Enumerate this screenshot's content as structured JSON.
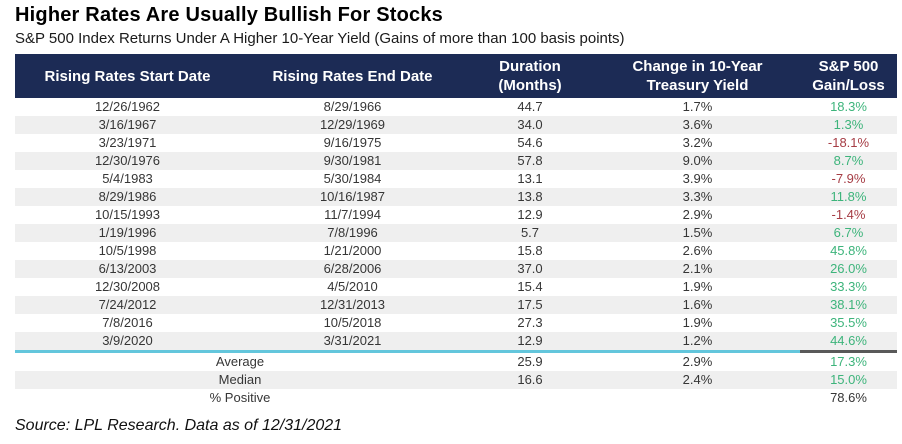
{
  "title": "Higher Rates Are Usually Bullish For Stocks",
  "subtitle": "S&P 500 Index Returns Under A Higher 10-Year Yield (Gains of more than 100 basis points)",
  "source": "Source: LPL Research. Data as of 12/31/2021",
  "colors": {
    "header_bg": "#1c2b55",
    "header_text": "#ffffff",
    "row_alt_bg": "#efefef",
    "body_text": "#363636",
    "gain_positive": "#3db47b",
    "gain_negative": "#a63d45",
    "divider_teal": "#63c6dc",
    "divider_dark": "#595959"
  },
  "table": {
    "columns": [
      {
        "label": "Rising Rates Start Date"
      },
      {
        "label": "Rising Rates End Date"
      },
      {
        "label": "Duration\n(Months)"
      },
      {
        "label": "Change in 10-Year\nTreasury Yield"
      },
      {
        "label": "S&P 500\nGain/Loss"
      }
    ],
    "rows": [
      {
        "start": "12/26/1962",
        "end": "8/29/1966",
        "duration": "44.7",
        "yield_change": "1.7%",
        "gain": "18.3%"
      },
      {
        "start": "3/16/1967",
        "end": "12/29/1969",
        "duration": "34.0",
        "yield_change": "3.6%",
        "gain": "1.3%"
      },
      {
        "start": "3/23/1971",
        "end": "9/16/1975",
        "duration": "54.6",
        "yield_change": "3.2%",
        "gain": "-18.1%"
      },
      {
        "start": "12/30/1976",
        "end": "9/30/1981",
        "duration": "57.8",
        "yield_change": "9.0%",
        "gain": "8.7%"
      },
      {
        "start": "5/4/1983",
        "end": "5/30/1984",
        "duration": "13.1",
        "yield_change": "3.9%",
        "gain": "-7.9%"
      },
      {
        "start": "8/29/1986",
        "end": "10/16/1987",
        "duration": "13.8",
        "yield_change": "3.3%",
        "gain": "11.8%"
      },
      {
        "start": "10/15/1993",
        "end": "11/7/1994",
        "duration": "12.9",
        "yield_change": "2.9%",
        "gain": "-1.4%"
      },
      {
        "start": "1/19/1996",
        "end": "7/8/1996",
        "duration": "5.7",
        "yield_change": "1.5%",
        "gain": "6.7%"
      },
      {
        "start": "10/5/1998",
        "end": "1/21/2000",
        "duration": "15.8",
        "yield_change": "2.6%",
        "gain": "45.8%"
      },
      {
        "start": "6/13/2003",
        "end": "6/28/2006",
        "duration": "37.0",
        "yield_change": "2.1%",
        "gain": "26.0%"
      },
      {
        "start": "12/30/2008",
        "end": "4/5/2010",
        "duration": "15.4",
        "yield_change": "1.9%",
        "gain": "33.3%"
      },
      {
        "start": "7/24/2012",
        "end": "12/31/2013",
        "duration": "17.5",
        "yield_change": "1.6%",
        "gain": "38.1%"
      },
      {
        "start": "7/8/2016",
        "end": "10/5/2018",
        "duration": "27.3",
        "yield_change": "1.9%",
        "gain": "35.5%"
      },
      {
        "start": "3/9/2020",
        "end": "3/31/2021",
        "duration": "12.9",
        "yield_change": "1.2%",
        "gain": "44.6%"
      }
    ],
    "summary": [
      {
        "label": "Average",
        "duration": "25.9",
        "yield_change": "2.9%",
        "gain": "17.3%",
        "gain_style": "positive"
      },
      {
        "label": "Median",
        "duration": "16.6",
        "yield_change": "2.4%",
        "gain": "15.0%",
        "gain_style": "positive"
      },
      {
        "label": "% Positive",
        "duration": "",
        "yield_change": "",
        "gain": "78.6%",
        "gain_style": "neutral"
      }
    ]
  },
  "chart_data": {
    "type": "table",
    "title": "Higher Rates Are Usually Bullish For Stocks",
    "subtitle": "S&P 500 Index Returns Under A Higher 10-Year Yield (Gains of more than 100 basis points)",
    "columns": [
      "Rising Rates Start Date",
      "Rising Rates End Date",
      "Duration (Months)",
      "Change in 10-Year Treasury Yield",
      "S&P 500 Gain/Loss"
    ],
    "rows": [
      [
        "12/26/1962",
        "8/29/1966",
        44.7,
        "1.7%",
        "18.3%"
      ],
      [
        "3/16/1967",
        "12/29/1969",
        34.0,
        "3.6%",
        "1.3%"
      ],
      [
        "3/23/1971",
        "9/16/1975",
        54.6,
        "3.2%",
        "-18.1%"
      ],
      [
        "12/30/1976",
        "9/30/1981",
        57.8,
        "9.0%",
        "8.7%"
      ],
      [
        "5/4/1983",
        "5/30/1984",
        13.1,
        "3.9%",
        "-7.9%"
      ],
      [
        "8/29/1986",
        "10/16/1987",
        13.8,
        "3.3%",
        "11.8%"
      ],
      [
        "10/15/1993",
        "11/7/1994",
        12.9,
        "2.9%",
        "-1.4%"
      ],
      [
        "1/19/1996",
        "7/8/1996",
        5.7,
        "1.5%",
        "6.7%"
      ],
      [
        "10/5/1998",
        "1/21/2000",
        15.8,
        "2.6%",
        "45.8%"
      ],
      [
        "6/13/2003",
        "6/28/2006",
        37.0,
        "2.1%",
        "26.0%"
      ],
      [
        "12/30/2008",
        "4/5/2010",
        15.4,
        "1.9%",
        "33.3%"
      ],
      [
        "7/24/2012",
        "12/31/2013",
        17.5,
        "1.6%",
        "38.1%"
      ],
      [
        "7/8/2016",
        "10/5/2018",
        27.3,
        "1.9%",
        "35.5%"
      ],
      [
        "3/9/2020",
        "3/31/2021",
        12.9,
        "1.2%",
        "44.6%"
      ]
    ],
    "summary": {
      "average": {
        "duration": 25.9,
        "yield_change": "2.9%",
        "gain": "17.3%"
      },
      "median": {
        "duration": 16.6,
        "yield_change": "2.4%",
        "gain": "15.0%"
      },
      "percent_positive": "78.6%"
    },
    "source": "Source: LPL Research. Data as of 12/31/2021"
  }
}
